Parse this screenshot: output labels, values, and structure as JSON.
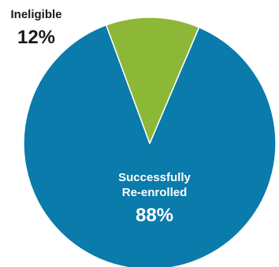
{
  "chart_data": {
    "type": "pie",
    "slices": [
      {
        "label_line1": "Successfully",
        "label_line2": "Re-enrolled",
        "value_text": "88%",
        "value": 88,
        "color": "#0a7bab",
        "label_color": "#ffffff"
      },
      {
        "label_line1": "Ineligible",
        "label_line2": "",
        "value_text": "12%",
        "value": 12,
        "color": "#8db737",
        "label_color": "#1a1a1a"
      }
    ],
    "start_angle_deg": 0,
    "direction": "clockwise",
    "legend": "none",
    "slice_border_color": "#ffffff"
  }
}
